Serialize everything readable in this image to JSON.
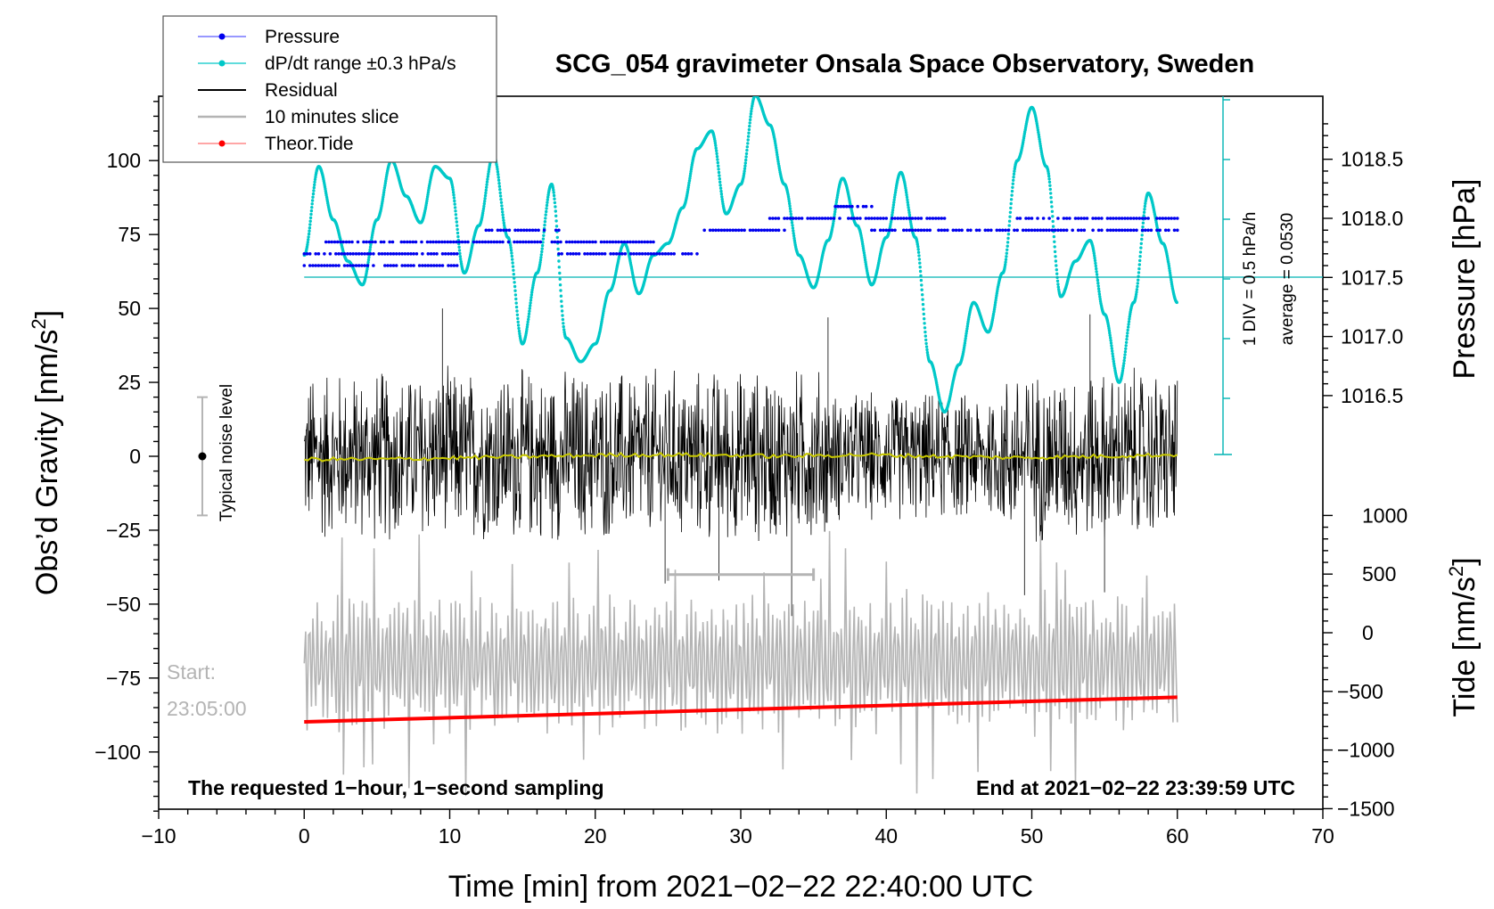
{
  "chart_data": {
    "type": "line",
    "title": "SCG_054 gravimeter Onsala Space Observatory, Sweden",
    "xlabel": "Time [min] from 2021−02−22 22:40:00 UTC",
    "ylabel_left": "Obs’d Gravity [nm/s²]",
    "ylabel_right_top": "Pressure [hPa]",
    "ylabel_right_bottom": "Tide [nm/s²]",
    "xlim": [
      -10,
      70
    ],
    "ylim_left": [
      -120,
      120
    ],
    "x_ticks": [
      -10,
      0,
      10,
      20,
      30,
      40,
      50,
      60,
      70
    ],
    "x_tick_labels": [
      "−10",
      "0",
      "10",
      "20",
      "30",
      "40",
      "50",
      "60",
      "70"
    ],
    "y_left_ticks": [
      100,
      75,
      50,
      25,
      0,
      -25,
      -50,
      -75,
      -100
    ],
    "y_left_tick_labels": [
      "100",
      "75",
      "50",
      "25",
      "0",
      "−25",
      "−50",
      "−75",
      "−100"
    ],
    "pressure_ticks": [
      1018.5,
      1018.0,
      1017.5,
      1017.0,
      1016.5
    ],
    "pressure_tick_labels": [
      "1018.5",
      "1018.0",
      "1017.5",
      "1017.0",
      "1016.5"
    ],
    "tide_ticks": [
      1000,
      500,
      0,
      -500,
      -1000,
      -1500
    ],
    "tide_tick_labels": [
      "1000",
      "500",
      "0",
      "−500",
      "−1000",
      "−1500"
    ],
    "legend": [
      {
        "label": "Pressure",
        "color": "#0000ee"
      },
      {
        "label": "dP/dt range ±0.3 hPa/s",
        "color": "#00c8c8"
      },
      {
        "label": "Residual",
        "color": "#000000"
      },
      {
        "label": "10 minutes slice",
        "color": "#b4b4b4"
      },
      {
        "label": "Theor.Tide",
        "color": "#ff0000"
      }
    ],
    "annotations": {
      "bottom_left": "The requested 1−hour, 1−second sampling",
      "bottom_right": "End at 2021−02−22 23:39:59 UTC",
      "start_label_1": "Start:",
      "start_label_2": "23:05:00",
      "noise_label": "Typical noise level",
      "div_label": "1 DIV = 0.5 hPa/h",
      "average_label": "average = 0.0530"
    },
    "noise_level": {
      "x": -7,
      "center": 0,
      "range": [
        -20,
        20
      ]
    },
    "slice_window_min": [
      25,
      35
    ],
    "series": {
      "pressure": {
        "name": "Pressure",
        "unit": "hPa",
        "levels": [
          1017.5,
          1017.6,
          1017.7,
          1017.8,
          1017.9,
          1018.0,
          1018.1,
          1018.2
        ],
        "segments": [
          {
            "t": [
              0,
              10.5
            ],
            "level": 1017.7
          },
          {
            "t": [
              0,
              10.5
            ],
            "level": 1017.6
          },
          {
            "t": [
              1.5,
              24
            ],
            "level": 1017.8
          },
          {
            "t": [
              12.5,
              17.5
            ],
            "level": 1017.9
          },
          {
            "t": [
              17.5,
              27
            ],
            "level": 1017.7
          },
          {
            "t": [
              27.5,
              33
            ],
            "level": 1017.9
          },
          {
            "t": [
              32,
              44
            ],
            "level": 1018.0
          },
          {
            "t": [
              36.5,
              39
            ],
            "level": 1018.1
          },
          {
            "t": [
              39,
              60
            ],
            "level": 1017.9
          },
          {
            "t": [
              49,
              60
            ],
            "level": 1018.0
          }
        ]
      },
      "dpdt": {
        "name": "dP/dt",
        "unit": "hPa/h",
        "div_per_unit": 0.5,
        "average": 0.053,
        "t": [
          0,
          1,
          2,
          3,
          4,
          5,
          6,
          7,
          8,
          9,
          10,
          11,
          12,
          13,
          14,
          15,
          16,
          17,
          18,
          19,
          20,
          21,
          22,
          23,
          24,
          25,
          26,
          27,
          28,
          29,
          30,
          31,
          32,
          33,
          34,
          35,
          36,
          37,
          38,
          39,
          40,
          41,
          42,
          43,
          44,
          45,
          46,
          47,
          48,
          49,
          50,
          51,
          52,
          53,
          54,
          55,
          56,
          57,
          58,
          59,
          60
        ],
        "value_gravity_axis": [
          68,
          98,
          80,
          66,
          58,
          80,
          100,
          88,
          79,
          98,
          94,
          62,
          78,
          102,
          74,
          38,
          62,
          92,
          40,
          32,
          38,
          56,
          72,
          55,
          68,
          72,
          84,
          104,
          110,
          82,
          92,
          122,
          112,
          92,
          68,
          57,
          73,
          94,
          78,
          58,
          74,
          96,
          74,
          32,
          15,
          31,
          52,
          42,
          62,
          100,
          118,
          98,
          54,
          66,
          73,
          48,
          25,
          52,
          89,
          72,
          52
        ]
      },
      "residual": {
        "name": "Residual",
        "unit": "nm/s²",
        "t_range": [
          0,
          60
        ],
        "envelope": [
          -35,
          35
        ],
        "spikes": [
          {
            "t": 9.5,
            "value": 50
          },
          {
            "t": 24.8,
            "value": -43
          },
          {
            "t": 28.5,
            "value": -42
          },
          {
            "t": 33.5,
            "value": -54
          },
          {
            "t": 36,
            "value": 47
          },
          {
            "t": 49.5,
            "value": -47
          },
          {
            "t": 54,
            "value": 48
          },
          {
            "t": 55,
            "value": -46
          }
        ]
      },
      "smoothed": {
        "name": "Smoothed residual",
        "color": "#c8c800",
        "values": [
          -1,
          -1,
          -0.5,
          0,
          0.5,
          0.5,
          0,
          0.5,
          0,
          -0.5,
          0,
          0.5
        ]
      },
      "slice": {
        "name": "10 minutes slice",
        "start": "23:05:00",
        "time_window_min": [
          25,
          35
        ],
        "display_t": [
          0,
          60
        ],
        "center_gravity_axis": -70,
        "peak_gravity_axis": 20
      },
      "tide": {
        "name": "Theor.Tide",
        "unit": "nm/s²",
        "t": [
          0,
          60
        ],
        "values": [
          -760,
          -550
        ]
      }
    }
  }
}
